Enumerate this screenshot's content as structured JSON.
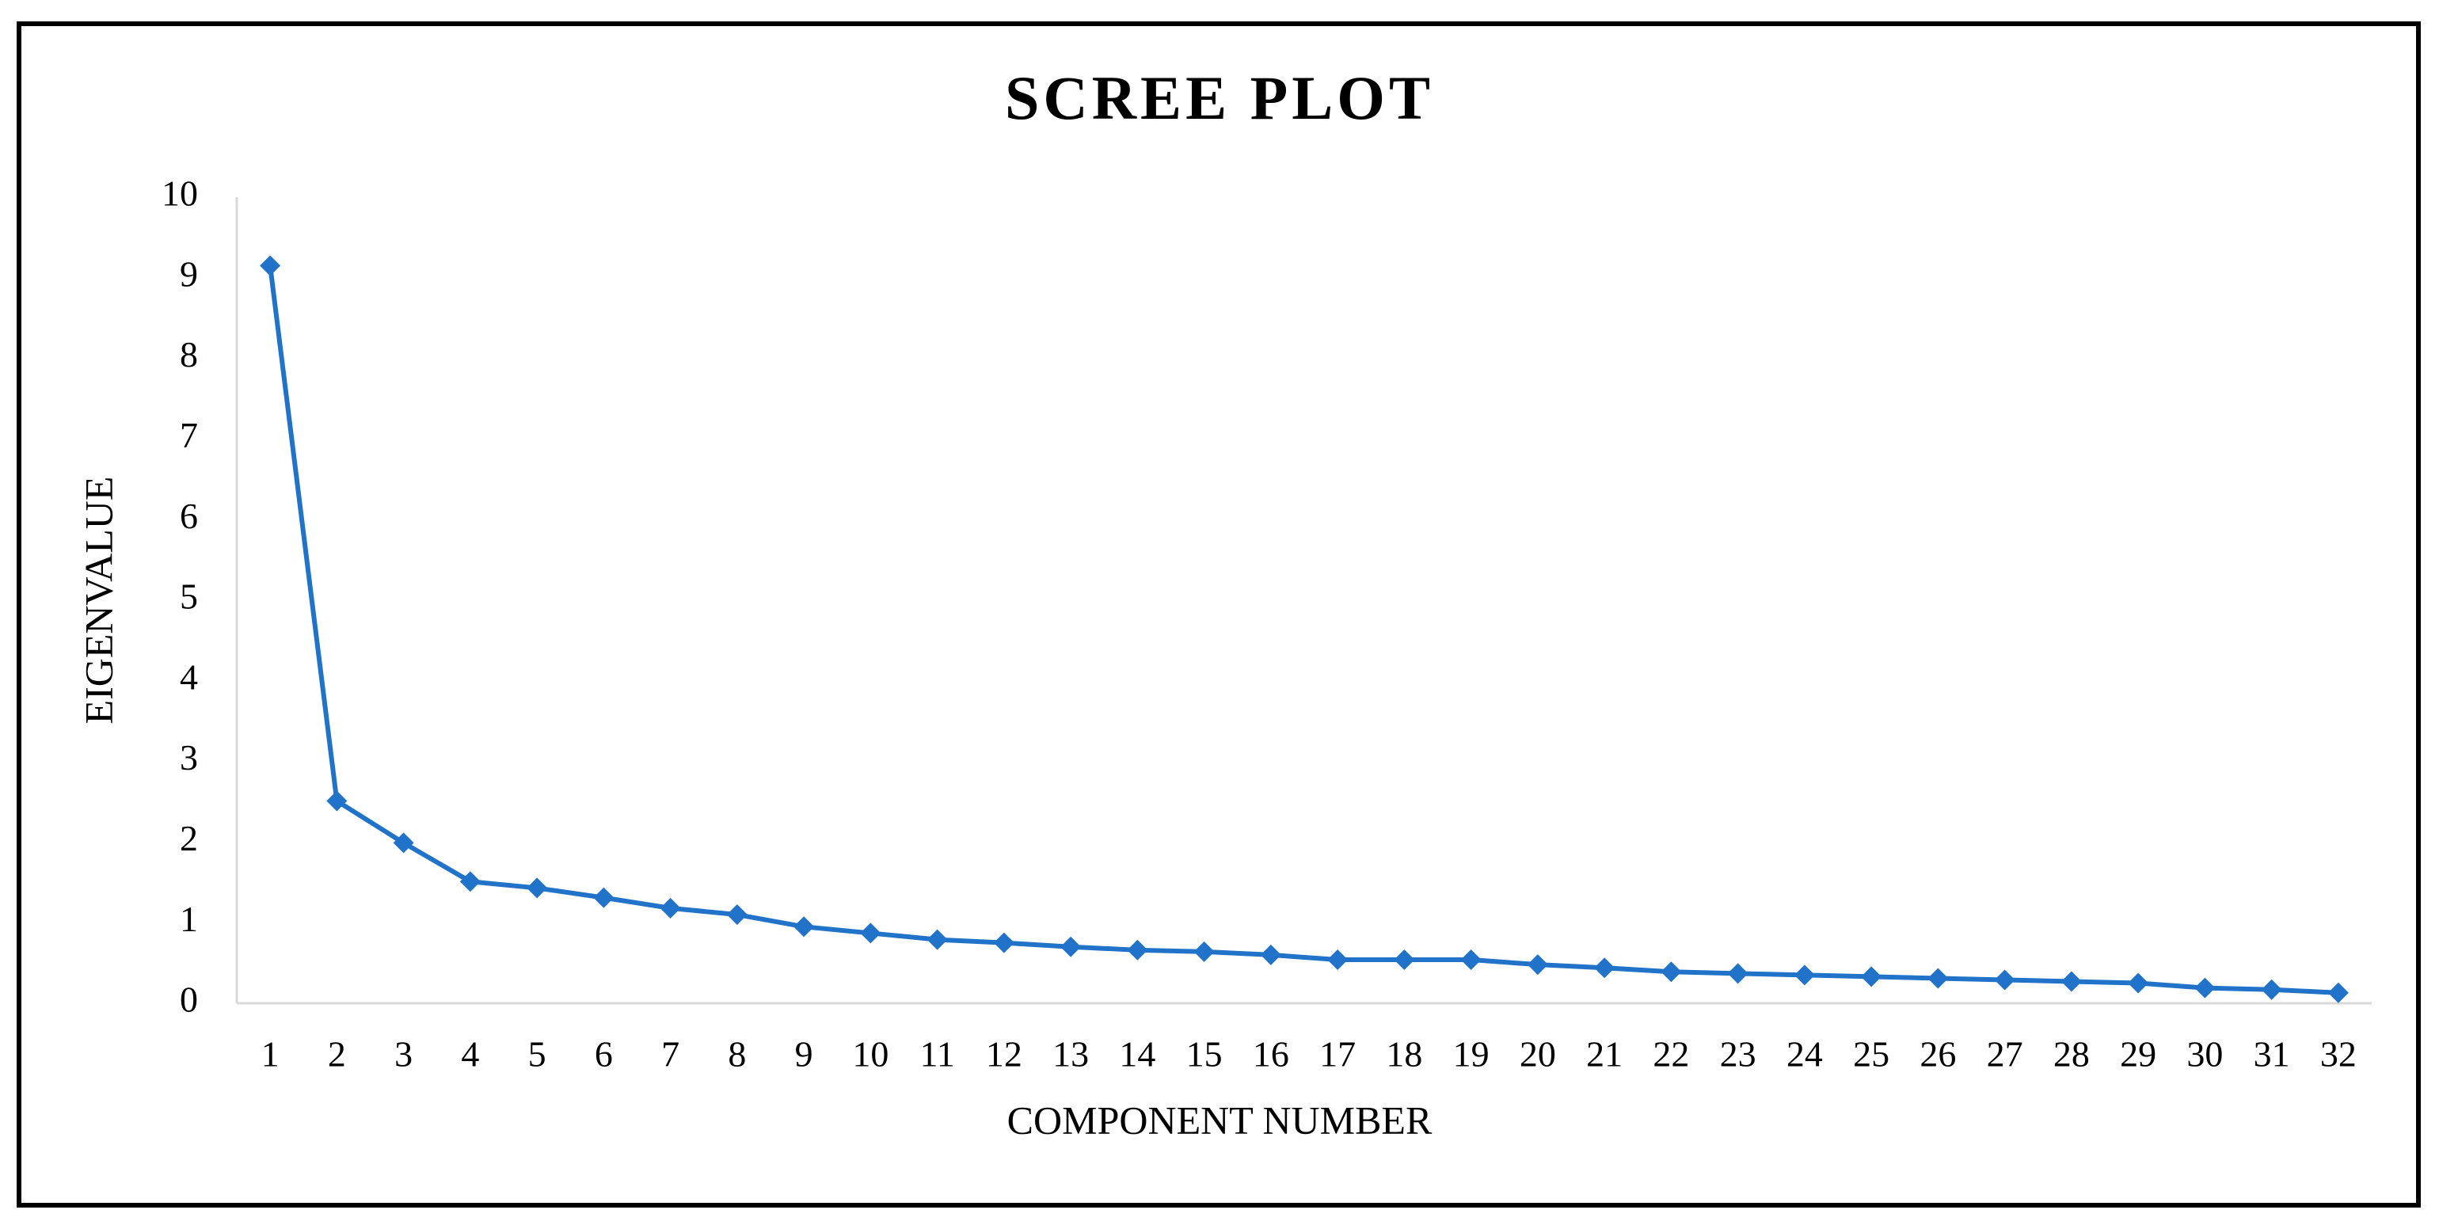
{
  "chart_data": {
    "type": "line",
    "title": "SCREE PLOT",
    "x_label": "COMPONENT NUMBER",
    "y_label": "EIGENVALUE",
    "categories": [
      "1",
      "2",
      "3",
      "4",
      "5",
      "6",
      "7",
      "8",
      "9",
      "10",
      "11",
      "12",
      "13",
      "14",
      "15",
      "16",
      "17",
      "18",
      "19",
      "20",
      "21",
      "22",
      "23",
      "24",
      "25",
      "26",
      "27",
      "28",
      "29",
      "30",
      "31",
      "32"
    ],
    "series": [
      {
        "name": "Eigenvalue",
        "color": "#2173c9",
        "values": [
          9.15,
          2.51,
          1.99,
          1.51,
          1.43,
          1.31,
          1.18,
          1.1,
          0.95,
          0.87,
          0.79,
          0.75,
          0.7,
          0.66,
          0.64,
          0.6,
          0.54,
          0.54,
          0.54,
          0.48,
          0.44,
          0.39,
          0.37,
          0.35,
          0.33,
          0.31,
          0.29,
          0.27,
          0.25,
          0.19,
          0.17,
          0.13
        ]
      }
    ],
    "ylim": [
      0,
      10
    ],
    "yticks": [
      0,
      1,
      2,
      3,
      4,
      5,
      6,
      7,
      8,
      9,
      10
    ],
    "grid": false
  }
}
